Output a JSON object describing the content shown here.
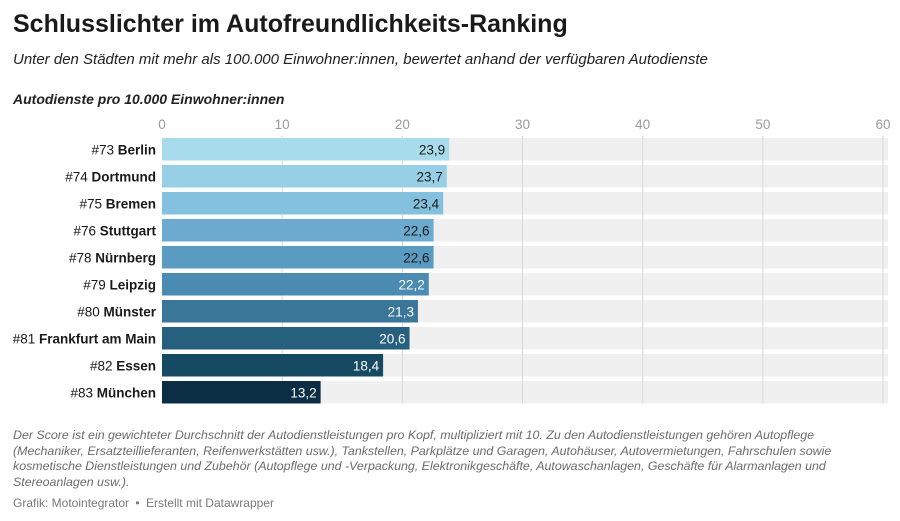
{
  "title": "Schlusslichter im Autofreundlichkeits-Ranking",
  "subtitle": "Unter den Städten mit mehr als 100.000 Einwohner:innen, bewertet anhand der verfügbaren Autodienste",
  "notes": "Der Score ist ein gewichteter Durchschnitt der Autodienstleistungen pro Kopf, multipliziert mit 10. Zu den Autodienstleistungen gehören Autopflege (Mechaniker, Ersatzteillieferanten, Reifenwerkstätten usw.), Tankstellen, Parkplätze und Garagen, Autohäuser, Autovermietungen, Fahrschulen sowie kosmetische Dienstleistungen und Zubehör (Autopflege und -Verpackung, Elektronikgeschäfte, Autowaschanlagen, Geschäfte für Alarmanlagen und Stereoanlagen usw.).",
  "footer": {
    "source": "Grafik: Motointegrator",
    "separator": "•",
    "credit": "Erstellt mit Datawrapper"
  },
  "chart_data": {
    "type": "bar",
    "orientation": "horizontal",
    "xlabel": "Autodienste pro 10.000 Einwohner:innen",
    "xlim": [
      0,
      60
    ],
    "ticks": [
      0,
      10,
      20,
      30,
      40,
      50,
      60
    ],
    "tick_labels": [
      "0",
      "10",
      "20",
      "30",
      "40",
      "50",
      "60"
    ],
    "axis_position": "top",
    "grid": true,
    "background_bars": true,
    "categories": [
      {
        "rank": "#73",
        "city": "Berlin"
      },
      {
        "rank": "#74",
        "city": "Dortmund"
      },
      {
        "rank": "#75",
        "city": "Bremen"
      },
      {
        "rank": "#76",
        "city": "Stuttgart"
      },
      {
        "rank": "#78",
        "city": "Nürnberg"
      },
      {
        "rank": "#79",
        "city": "Leipzig"
      },
      {
        "rank": "#80",
        "city": "Münster"
      },
      {
        "rank": "#81",
        "city": "Frankfurt am Main"
      },
      {
        "rank": "#82",
        "city": "Essen"
      },
      {
        "rank": "#83",
        "city": "München"
      }
    ],
    "values": [
      23.9,
      23.7,
      23.4,
      22.6,
      22.6,
      22.2,
      21.3,
      20.6,
      18.4,
      13.2
    ],
    "value_labels": [
      "23,9",
      "23,7",
      "23,4",
      "22,6",
      "22,6",
      "22,2",
      "21,3",
      "20,6",
      "18,4",
      "13,2"
    ],
    "colors": [
      "#a8dbec",
      "#97d0e6",
      "#84c1df",
      "#6cabcf",
      "#5a9cc1",
      "#4a8bb1",
      "#3a7698",
      "#27607f",
      "#164a62",
      "#0b2e44"
    ],
    "label_colors": [
      "#1a1a1a",
      "#1a1a1a",
      "#1a1a1a",
      "#1a1a1a",
      "#1a1a1a",
      "#ffffff",
      "#ffffff",
      "#ffffff",
      "#ffffff",
      "#ffffff"
    ],
    "track_color": "#f0f0f0",
    "grid_color": "#d8d8d8",
    "tick_color": "#9a9a9a"
  }
}
